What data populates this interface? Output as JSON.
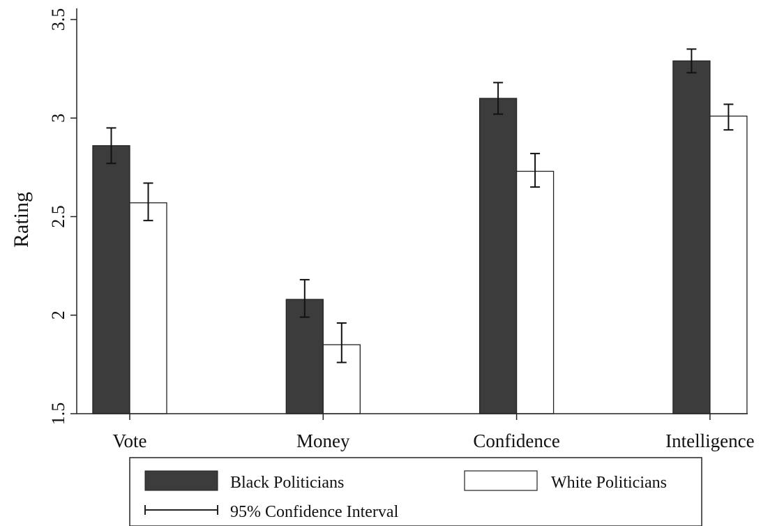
{
  "chart_data": {
    "type": "bar",
    "title": "",
    "xlabel": "",
    "ylabel": "Rating",
    "ylim": [
      1.5,
      3.5
    ],
    "yticks": [
      1.5,
      2,
      2.5,
      3,
      3.5
    ],
    "ytick_labels": [
      "1.5",
      "2",
      "2.5",
      "3",
      "3.5"
    ],
    "categories": [
      "Vote",
      "Money",
      "Confidence",
      "Intelligence"
    ],
    "series": [
      {
        "name": "Black Politicians",
        "color": "#3c3c3c",
        "values": [
          2.86,
          2.08,
          3.1,
          3.29
        ],
        "ci_low": [
          2.77,
          1.99,
          3.02,
          3.23
        ],
        "ci_high": [
          2.95,
          2.18,
          3.18,
          3.35
        ]
      },
      {
        "name": "White Politicians",
        "color": "#ffffff",
        "values": [
          2.57,
          1.85,
          2.73,
          3.01
        ],
        "ci_low": [
          2.48,
          1.76,
          2.65,
          2.94
        ],
        "ci_high": [
          2.67,
          1.96,
          2.82,
          3.07
        ]
      }
    ],
    "legend": {
      "position": "bottom",
      "items": [
        "Black Politicians",
        "White Politicians"
      ],
      "ci_label": "95% Confidence Interval"
    },
    "grid": false
  }
}
